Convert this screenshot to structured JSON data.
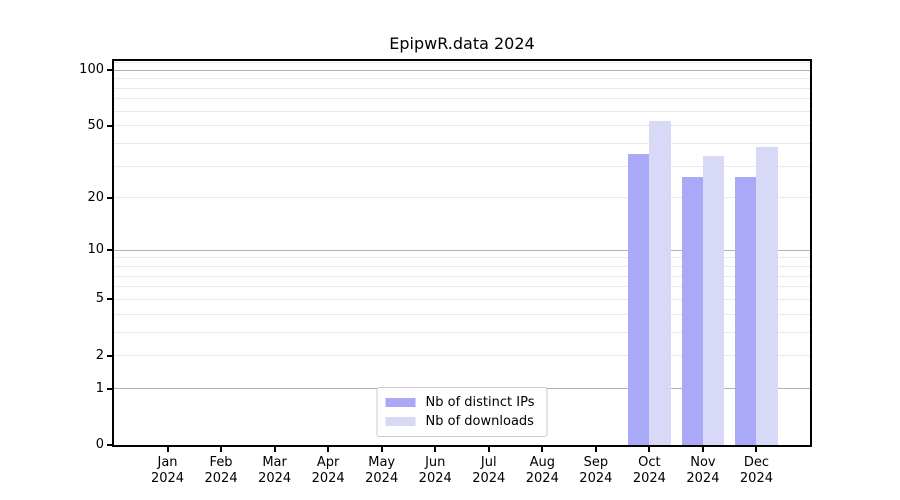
{
  "chart_data": {
    "type": "bar",
    "title": "EpipwR.data 2024",
    "scale": "log1p",
    "xlabel": "",
    "ylabel": "",
    "ylim": [
      0,
      112
    ],
    "grid": "on",
    "legend_position": "lower center",
    "year": "2024",
    "categories": [
      "Jan 2024",
      "Feb 2024",
      "Mar 2024",
      "Apr 2024",
      "May 2024",
      "Jun 2024",
      "Jul 2024",
      "Aug 2024",
      "Sep 2024",
      "Oct 2024",
      "Nov 2024",
      "Dec 2024"
    ],
    "yticks_labeled": [
      100,
      50,
      20,
      10,
      5,
      2,
      1,
      0
    ],
    "grid_major": [
      1,
      10,
      100
    ],
    "grid_minor": [
      2,
      3,
      4,
      5,
      6,
      7,
      8,
      9,
      20,
      30,
      40,
      50,
      60,
      70,
      80,
      90,
      110
    ],
    "series": [
      {
        "name": "Nb of distinct IPs",
        "color": "#a9a9f7",
        "values": [
          0,
          0,
          0,
          0,
          0,
          0,
          0,
          0,
          0,
          35,
          26,
          26
        ]
      },
      {
        "name": "Nb of downloads",
        "color": "#d8d8f7",
        "values": [
          0,
          0,
          0,
          0,
          0,
          0,
          0,
          0,
          0,
          53,
          34,
          38
        ]
      }
    ]
  }
}
